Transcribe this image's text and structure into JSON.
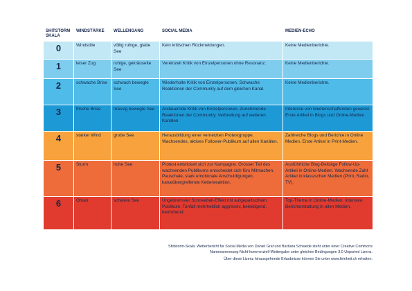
{
  "header": {
    "columns": [
      "SHITSTORM SKALA",
      "WINDSTÄRKE",
      "WELLENGANG",
      "SOCIAL MEDIA",
      "MEDIEN-ECHO"
    ]
  },
  "table": {
    "rows": [
      [
        "0",
        "Windstille",
        "völlig ruhige, glatte See",
        "Kein kritischen Rückmeldungen.",
        "Keine Medienberichte."
      ],
      [
        "1",
        "leiser Zug",
        "ruhige, gekräuselte See",
        "Vereinzelt Kritik von Einzelpersonen ohne Resonanz.",
        "Keine Medienberichte."
      ],
      [
        "2",
        "schwache Brise",
        "schwach bewegte See",
        "Wiederholte Kritik von Einzelpersonen. Schwache Reaktionen der Community auf dem gleichen Kanal.",
        "Keine Medienberichte."
      ],
      [
        "3",
        "frische Brise",
        "mässig bewegte See",
        "Andauernde Kritik von Einzelpersonen, Zunehmende Reaktionen der Community. Verbreitung auf weiteren Kanälen.",
        "Interesse von Medienschaffenden geweckt. Erste Artikel in Blogs und Online-Medien."
      ],
      [
        "4",
        "starker Wind",
        "grobe See",
        "Herausbildung einer vernetzten Protestgruppe. Wachsendes, aktives Follower-Publikum auf allen Kanälen.",
        "Zahlreiche Blogs und Berichte in Online Medien. Erste Artikel in Print-Medien."
      ],
      [
        "5",
        "Sturm",
        "hohe See",
        "Protest entwickelt sich zur Kampagne. Grosser Teil des wachsenden Publikums entscheidet sich fürs Mitmachen. Pauschale, stark emotionale Anschuldigungen, kanalübergreifende Kettenreaktion.",
        "Ausführliche Blog-Beiträge Follow-Up-Artikel in Online-Medien. Wachsende Zahl Artikel in klassischen Medien (Print, Radio, TV)."
      ],
      [
        "6",
        "Orkan",
        "schwere See",
        "Ungebremster Schneeball-Effekt mit aufgepeitschtem Publikum. Tonfall mehrheitlich aggressiv, beleidigend, bedrohend.",
        "Top-Thema in Online-Medien. Intensive Berichterstattung in allen Medien."
      ]
    ]
  },
  "footer": {
    "lines": [
      "Shitstorm-Skala: Wetterbericht für Social Media von Daniel Graf und Barbara Schwede steht unter einer Creative Commons Namensnennung-Nicht-kommerziell-Weitergabe unter gleichen Bedingungen 3.0 Unported Lizenz.",
      "Über diese Lizenz hinausgehende Erlaubnisse können Sie unter www.feinheit.ch erhalten."
    ]
  }
}
